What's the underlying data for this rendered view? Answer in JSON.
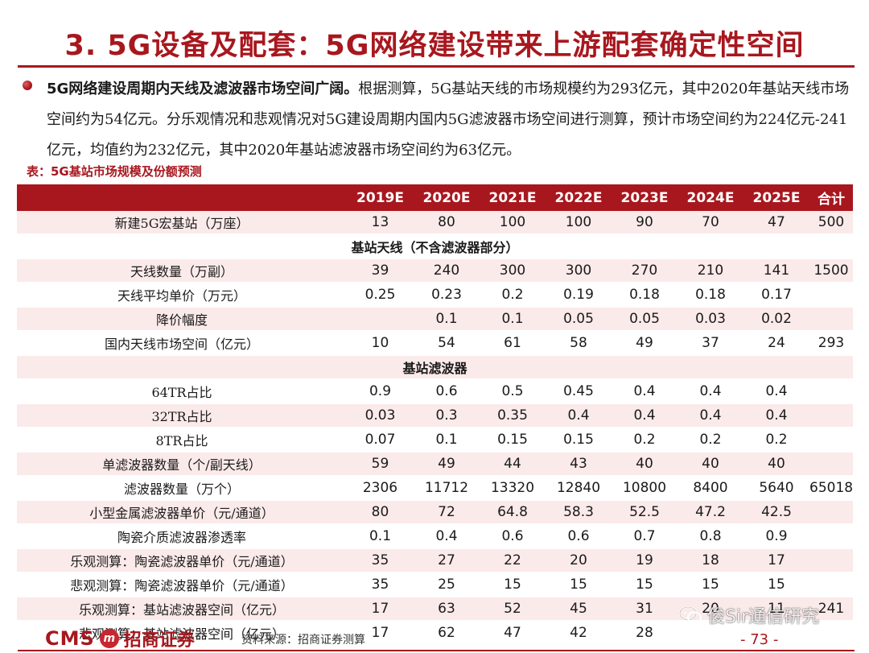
{
  "title": "3. 5G设备及配套：5G网络建设带来上游配套确定性空间",
  "paragraph": {
    "lead": "5G网络建设周期内天线及滤波器市场空间广阔。",
    "body": "根据测算，5G基站天线的市场规模约为293亿元，其中2020年基站天线市场空间约为54亿元。分乐观情况和悲观情况对5G建设周期内国内5G滤波器市场空间进行测算，预计市场空间约为224亿元-241亿元，均值约为232亿元，其中2020年基站滤波器市场空间约为63亿元。"
  },
  "table_caption": "表：5G基站市场规模及份额预测",
  "table": {
    "headers": [
      "",
      "2019E",
      "2020E",
      "2021E",
      "2022E",
      "2023E",
      "2024E",
      "2025E",
      "合计"
    ],
    "rows": [
      {
        "type": "data",
        "cells": [
          "新建5G宏基站（万座）",
          "13",
          "80",
          "100",
          "100",
          "90",
          "70",
          "47",
          "500"
        ]
      },
      {
        "type": "section",
        "label": "基站天线（不含滤波器部分）"
      },
      {
        "type": "data",
        "cells": [
          "天线数量（万副）",
          "39",
          "240",
          "300",
          "300",
          "270",
          "210",
          "141",
          "1500"
        ]
      },
      {
        "type": "data",
        "cells": [
          "天线平均单价（万元）",
          "0.25",
          "0.23",
          "0.2",
          "0.19",
          "0.18",
          "0.18",
          "0.17",
          ""
        ]
      },
      {
        "type": "data",
        "cells": [
          "降价幅度",
          "",
          "0.1",
          "0.1",
          "0.05",
          "0.05",
          "0.03",
          "0.02",
          ""
        ]
      },
      {
        "type": "data",
        "cells": [
          "国内天线市场空间（亿元）",
          "10",
          "54",
          "61",
          "58",
          "49",
          "37",
          "24",
          "293"
        ]
      },
      {
        "type": "section",
        "label": "基站滤波器"
      },
      {
        "type": "data",
        "cells": [
          "64TR占比",
          "0.9",
          "0.6",
          "0.5",
          "0.45",
          "0.4",
          "0.4",
          "0.4",
          ""
        ]
      },
      {
        "type": "data",
        "cells": [
          "32TR占比",
          "0.03",
          "0.3",
          "0.35",
          "0.4",
          "0.4",
          "0.4",
          "0.4",
          ""
        ]
      },
      {
        "type": "data",
        "cells": [
          "8TR占比",
          "0.07",
          "0.1",
          "0.15",
          "0.15",
          "0.2",
          "0.2",
          "0.2",
          ""
        ]
      },
      {
        "type": "data",
        "cells": [
          "单滤波器数量（个/副天线）",
          "59",
          "49",
          "44",
          "43",
          "40",
          "40",
          "40",
          ""
        ]
      },
      {
        "type": "data",
        "cells": [
          "滤波器数量（万个）",
          "2306",
          "11712",
          "13320",
          "12840",
          "10800",
          "8400",
          "5640",
          "65018"
        ]
      },
      {
        "type": "data",
        "cells": [
          "小型金属滤波器单价（元/通道）",
          "80",
          "72",
          "64.8",
          "58.3",
          "52.5",
          "47.2",
          "42.5",
          ""
        ]
      },
      {
        "type": "data",
        "cells": [
          "陶瓷介质滤波器渗透率",
          "0.1",
          "0.4",
          "0.6",
          "0.6",
          "0.7",
          "0.8",
          "0.9",
          ""
        ]
      },
      {
        "type": "data",
        "cells": [
          "乐观测算：陶瓷滤波器单价（元/通道）",
          "35",
          "27",
          "22",
          "20",
          "19",
          "18",
          "17",
          ""
        ]
      },
      {
        "type": "data",
        "cells": [
          "悲观测算：陶瓷滤波器单价（元/通道）",
          "35",
          "25",
          "15",
          "15",
          "15",
          "15",
          "15",
          ""
        ]
      },
      {
        "type": "data",
        "cells": [
          "乐观测算：基站滤波器空间（亿元）",
          "17",
          "63",
          "52",
          "45",
          "31",
          "20",
          "11",
          "241"
        ]
      },
      {
        "type": "data",
        "cells": [
          "悲观测算：基站滤波器空间（亿元）",
          "17",
          "62",
          "47",
          "42",
          "28",
          "",
          "",
          ""
        ]
      }
    ]
  },
  "footer": {
    "logo_text": "CMS",
    "logo_seal": "m",
    "logo_cn": "招商证券",
    "source": "资料来源：招商证券测算",
    "page": "- 73 -"
  },
  "watermark": {
    "text": "俊Sir通信研究",
    "icon": "wechat-icon"
  },
  "colors": {
    "accent": "#a8171e",
    "row_tint": "#fbeaea"
  }
}
